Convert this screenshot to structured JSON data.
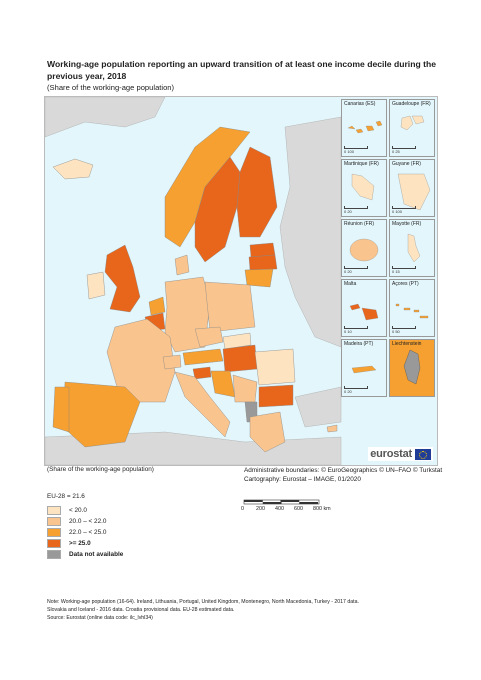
{
  "title": "Working-age population reporting an upward transition of at least one income decile during the previous year, 2018",
  "subtitle": "(Share of the working-age population)",
  "colors": {
    "sea": "#e3f6fb",
    "non_eu": "#d9d9d9",
    "lt20": "#fde3c0",
    "c20_22": "#f9c48d",
    "c22_25": "#f5a030",
    "ge25": "#e8651c",
    "na": "#999999"
  },
  "insets": [
    {
      "label": "Canarias (ES)",
      "scale": "0     100"
    },
    {
      "label": "Guadeloupe (FR)",
      "scale": "0     25"
    },
    {
      "label": "Martinique (FR)",
      "scale": "0     20"
    },
    {
      "label": "Guyane (FR)",
      "scale": "0     100"
    },
    {
      "label": "Réunion (FR)",
      "scale": "0     20"
    },
    {
      "label": "Mayotte (FR)",
      "scale": "0     15"
    },
    {
      "label": "Malta",
      "scale": "0     10"
    },
    {
      "label": "Açores (PT)",
      "scale": "0     50"
    },
    {
      "label": "Madeira (PT)",
      "scale": "0     20"
    },
    {
      "label": "Liechtenstein",
      "scale": "0     5"
    }
  ],
  "logo_text": "eurostat",
  "share_note": "(Share of the working-age population)",
  "credits": {
    "line1": "Administrative boundaries: © EuroGeographics © UN–FAO © Turkstat",
    "line2": "Cartography: Eurostat – IMAGE, 01/2020"
  },
  "scalebar": {
    "ticks": [
      "0",
      "200",
      "400",
      "600",
      "800 km"
    ]
  },
  "legend": {
    "eu_value": "EU-28 = 21.6",
    "classes": [
      {
        "label": "< 20.0",
        "color": "#fde3c0"
      },
      {
        "label": "20.0 – < 22.0",
        "color": "#f9c48d"
      },
      {
        "label": "22.0 – < 25.0",
        "color": "#f5a030"
      },
      {
        "label": ">= 25.0",
        "color": "#e8651c"
      },
      {
        "label": "Data not available",
        "color": "#999999"
      }
    ]
  },
  "footnote": {
    "line1": "Note: Working-age population (16-64). Ireland, Lithuania, Portugal, United Kingdom, Montenegro, North Macedonia, Turkey - 2017 data.",
    "line2": "Slovakia and Iceland - 2016 data. Croatia provisional data. EU-28 estimated data.",
    "line3": "Source: Eurostat (online data code: ilc_lvhl34)"
  }
}
